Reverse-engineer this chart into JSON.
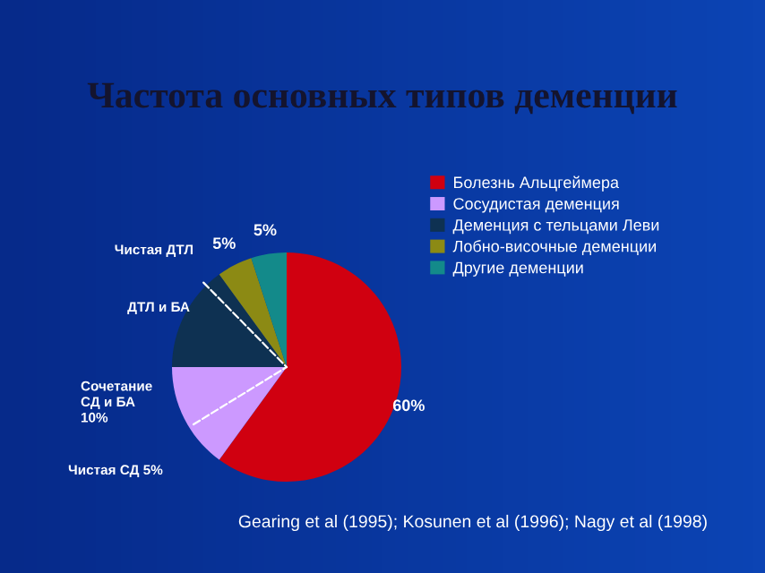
{
  "chart_data": {
    "type": "pie",
    "title": "Частота основных типов деменции",
    "categories": [
      "Болезнь Альцгеймера",
      "Сосудистая деменция",
      "Деменция с тельцами Леви",
      "Лобно-височные деменции",
      "Другие деменции"
    ],
    "values": [
      60,
      15,
      15,
      5,
      5
    ],
    "colors": [
      "#d00010",
      "#cc99ff",
      "#0e3152",
      "#8c8a14",
      "#138a8a"
    ],
    "value_labels": [
      "60%",
      null,
      null,
      "5%",
      "5%"
    ],
    "legend": "top right",
    "annotations": [
      "Чистая ДТЛ",
      "ДТЛ и БА",
      "Сочетание\nСД и БА\n10%",
      "Чистая СД 5%",
      "Gearing et al (1995); Kosunen et al (1996); Nagy et al (1998)"
    ]
  }
}
